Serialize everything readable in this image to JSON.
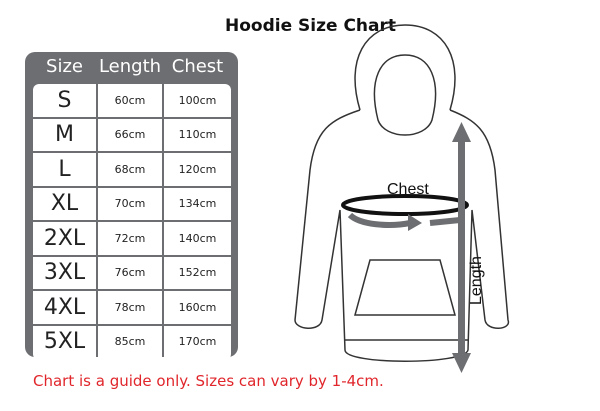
{
  "title": "Hoodie Size Chart",
  "table": {
    "headers": [
      "Size",
      "Length",
      "Chest"
    ],
    "rows": [
      [
        "S",
        "60cm",
        "100cm"
      ],
      [
        "M",
        "66cm",
        "110cm"
      ],
      [
        "L",
        "68cm",
        "120cm"
      ],
      [
        "XL",
        "70cm",
        "134cm"
      ],
      [
        "2XL",
        "72cm",
        "140cm"
      ],
      [
        "3XL",
        "76cm",
        "152cm"
      ],
      [
        "4XL",
        "78cm",
        "160cm"
      ],
      [
        "5XL",
        "85cm",
        "170cm"
      ]
    ]
  },
  "diagram": {
    "chest_label": "Chest",
    "length_label": "Length",
    "arrow_color": "#6d6e71"
  },
  "note": "Chart is a guide only. Sizes can vary by 1-4cm."
}
